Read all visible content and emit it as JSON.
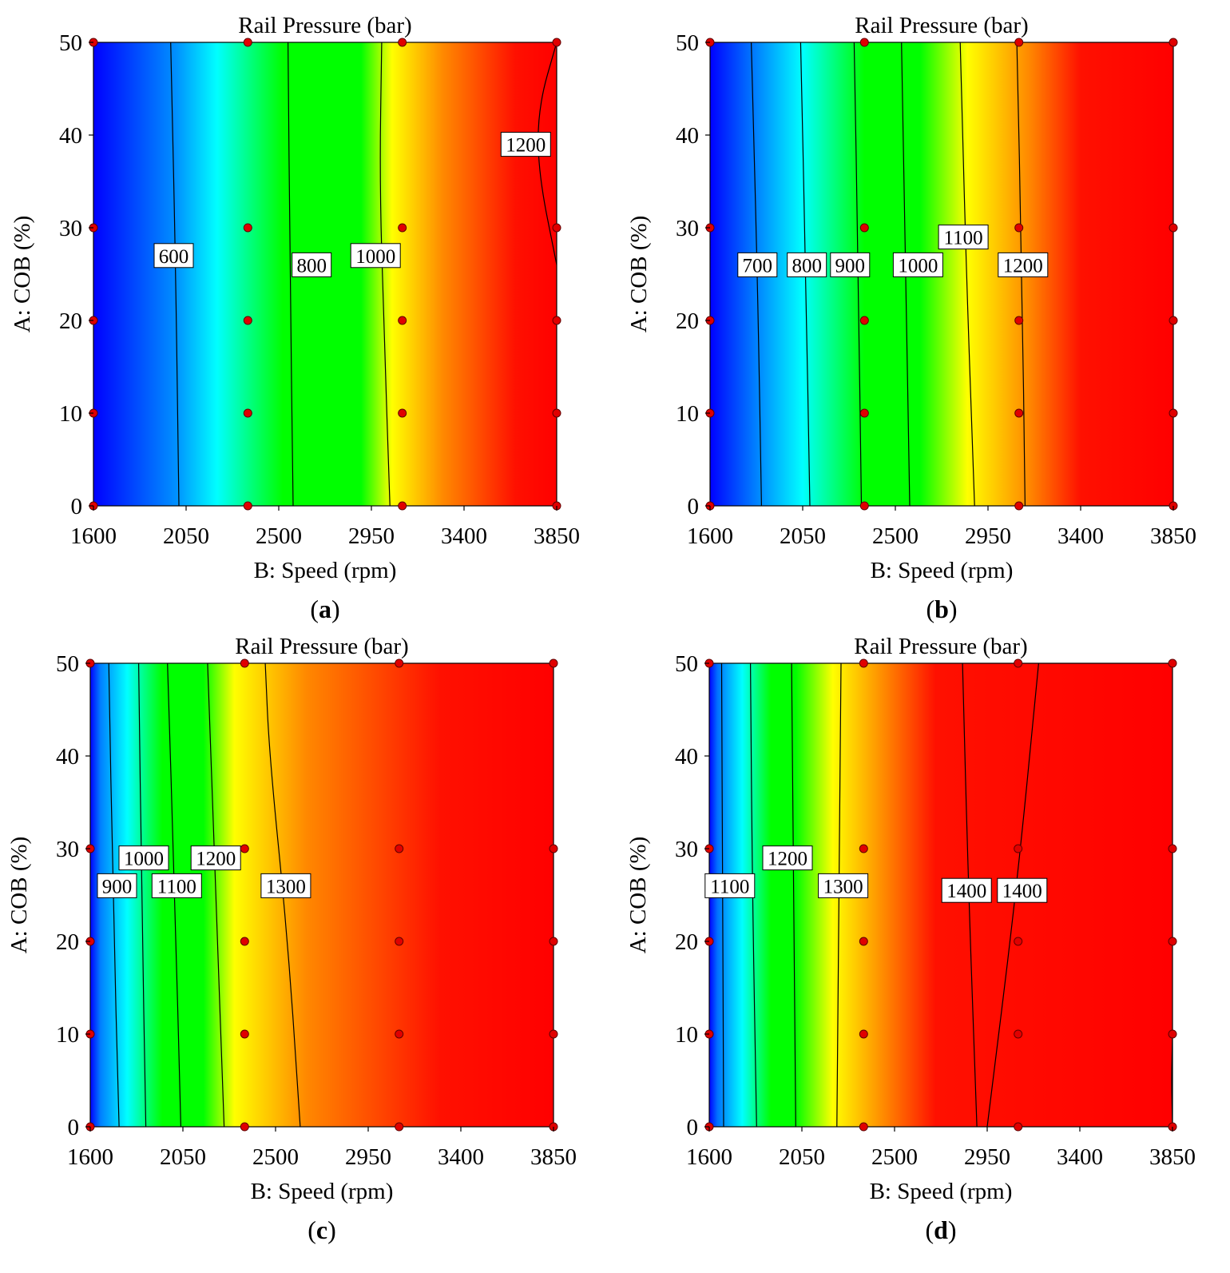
{
  "chart_data": [
    {
      "type": "contour",
      "panel_label": "a",
      "title": "Rail Pressure (bar)",
      "xlabel": "B: Speed  (rpm)",
      "ylabel": "A: COB (%)",
      "xlim": [
        1600,
        3850
      ],
      "ylim": [
        0,
        50
      ],
      "xticks": [
        "1600",
        "2050",
        "2500",
        "2950",
        "3400",
        "3850"
      ],
      "yticks": [
        "0",
        "10",
        "20",
        "30",
        "40",
        "50"
      ],
      "color_stops": [
        {
          "speed": 1600,
          "color": "#0000ff"
        },
        {
          "speed": 2000,
          "color": "#0090ff"
        },
        {
          "speed": 2200,
          "color": "#00ffff"
        },
        {
          "speed": 2520,
          "color": "#00ff00"
        },
        {
          "speed": 2900,
          "color": "#00ff00"
        },
        {
          "speed": 3050,
          "color": "#ffff00"
        },
        {
          "speed": 3300,
          "color": "#ff8800"
        },
        {
          "speed": 3650,
          "color": "#ff1000"
        },
        {
          "speed": 3850,
          "color": "#ff0000"
        }
      ],
      "contours": [
        {
          "level": "600",
          "points": [
            [
              1975,
              50
            ],
            [
              2000,
              25
            ],
            [
              2015,
              0
            ]
          ],
          "label_at": [
            1990,
            27
          ]
        },
        {
          "level": "800",
          "points": [
            [
              2545,
              50
            ],
            [
              2555,
              25
            ],
            [
              2570,
              0
            ]
          ],
          "label_at": [
            2660,
            26
          ]
        },
        {
          "level": "1000",
          "points": [
            [
              3000,
              50
            ],
            [
              2990,
              35
            ],
            [
              3010,
              20
            ],
            [
              3040,
              0
            ]
          ],
          "label_at": [
            2970,
            27
          ]
        },
        {
          "level": "1200",
          "points": [
            [
              3850,
              50
            ],
            [
              3760,
              43
            ],
            [
              3760,
              36
            ],
            [
              3850,
              26
            ]
          ],
          "label_at": [
            3700,
            39
          ]
        }
      ],
      "design_points": [
        [
          1600,
          50
        ],
        [
          1600,
          30
        ],
        [
          1600,
          20
        ],
        [
          1600,
          10
        ],
        [
          1600,
          0
        ],
        [
          2350,
          50
        ],
        [
          2350,
          30
        ],
        [
          2350,
          20
        ],
        [
          2350,
          10
        ],
        [
          2350,
          0
        ],
        [
          3100,
          50
        ],
        [
          3100,
          30
        ],
        [
          3100,
          20
        ],
        [
          3100,
          10
        ],
        [
          3100,
          0
        ],
        [
          3850,
          50
        ],
        [
          3850,
          30
        ],
        [
          3850,
          20
        ],
        [
          3850,
          10
        ],
        [
          3850,
          0
        ]
      ]
    },
    {
      "type": "contour",
      "panel_label": "b",
      "title": "Rail Pressure  (bar)",
      "xlabel": "B: Speed  (rpm)",
      "ylabel": "A: COB (%)",
      "xlim": [
        1600,
        3850
      ],
      "ylim": [
        0,
        50
      ],
      "xticks": [
        "1600",
        "2050",
        "2500",
        "2950",
        "3400",
        "3850"
      ],
      "yticks": [
        "0",
        "10",
        "20",
        "30",
        "40",
        "50"
      ],
      "color_stops": [
        {
          "speed": 1600,
          "color": "#0000ff"
        },
        {
          "speed": 1850,
          "color": "#0090ff"
        },
        {
          "speed": 2050,
          "color": "#00ffff"
        },
        {
          "speed": 2350,
          "color": "#00ff00"
        },
        {
          "speed": 2620,
          "color": "#00ff00"
        },
        {
          "speed": 2850,
          "color": "#ffff00"
        },
        {
          "speed": 3150,
          "color": "#ff8800"
        },
        {
          "speed": 3400,
          "color": "#ff1000"
        },
        {
          "speed": 3850,
          "color": "#ff0000"
        }
      ],
      "contours": [
        {
          "level": "700",
          "points": [
            [
              1800,
              50
            ],
            [
              1830,
              25
            ],
            [
              1850,
              0
            ]
          ],
          "label_at": [
            1830,
            26
          ]
        },
        {
          "level": "800",
          "points": [
            [
              2040,
              50
            ],
            [
              2065,
              25
            ],
            [
              2085,
              0
            ]
          ],
          "label_at": [
            2070,
            26
          ]
        },
        {
          "level": "900",
          "points": [
            [
              2300,
              50
            ],
            [
              2320,
              25
            ],
            [
              2335,
              0
            ]
          ],
          "label_at": [
            2280,
            26
          ]
        },
        {
          "level": "1000",
          "points": [
            [
              2530,
              50
            ],
            [
              2550,
              25
            ],
            [
              2570,
              0
            ]
          ],
          "label_at": [
            2610,
            26
          ]
        },
        {
          "level": "1100",
          "points": [
            [
              2815,
              50
            ],
            [
              2845,
              25
            ],
            [
              2885,
              0
            ]
          ],
          "label_at": [
            2830,
            29
          ]
        },
        {
          "level": "1200",
          "points": [
            [
              3090,
              50
            ],
            [
              3115,
              25
            ],
            [
              3130,
              0
            ]
          ],
          "label_at": [
            3120,
            26
          ]
        }
      ],
      "design_points": [
        [
          1600,
          50
        ],
        [
          1600,
          30
        ],
        [
          1600,
          20
        ],
        [
          1600,
          10
        ],
        [
          1600,
          0
        ],
        [
          2350,
          50
        ],
        [
          2350,
          30
        ],
        [
          2350,
          20
        ],
        [
          2350,
          10
        ],
        [
          2350,
          0
        ],
        [
          3100,
          50
        ],
        [
          3100,
          30
        ],
        [
          3100,
          20
        ],
        [
          3100,
          10
        ],
        [
          3100,
          0
        ],
        [
          3850,
          50
        ],
        [
          3850,
          30
        ],
        [
          3850,
          20
        ],
        [
          3850,
          10
        ],
        [
          3850,
          0
        ]
      ]
    },
    {
      "type": "contour",
      "panel_label": "c",
      "title": "Rail Pressure  (bar)",
      "xlabel": "B: Speed  (rpm)",
      "ylabel": "A: COB (%)",
      "xlim": [
        1600,
        3850
      ],
      "ylim": [
        0,
        50
      ],
      "xticks": [
        "1600",
        "2050",
        "2500",
        "2950",
        "3400",
        "3850"
      ],
      "yticks": [
        "0",
        "10",
        "20",
        "30",
        "40",
        "50"
      ],
      "color_stops": [
        {
          "speed": 1600,
          "color": "#0000ff"
        },
        {
          "speed": 1650,
          "color": "#0080ff"
        },
        {
          "speed": 1780,
          "color": "#00ffff"
        },
        {
          "speed": 1950,
          "color": "#00ff00"
        },
        {
          "speed": 2150,
          "color": "#00ff00"
        },
        {
          "speed": 2300,
          "color": "#ffff00"
        },
        {
          "speed": 2650,
          "color": "#ff8800"
        },
        {
          "speed": 3300,
          "color": "#ff1000"
        },
        {
          "speed": 3850,
          "color": "#ff0000"
        }
      ],
      "contours": [
        {
          "level": "900",
          "points": [
            [
              1690,
              50
            ],
            [
              1710,
              25
            ],
            [
              1740,
              0
            ]
          ],
          "label_at": [
            1730,
            26
          ]
        },
        {
          "level": "1000",
          "points": [
            [
              1835,
              50
            ],
            [
              1850,
              25
            ],
            [
              1870,
              0
            ]
          ],
          "label_at": [
            1860,
            29
          ]
        },
        {
          "level": "1100",
          "points": [
            [
              1975,
              50
            ],
            [
              2010,
              25
            ],
            [
              2040,
              0
            ]
          ],
          "label_at": [
            2020,
            26
          ]
        },
        {
          "level": "1200",
          "points": [
            [
              2170,
              50
            ],
            [
              2210,
              25
            ],
            [
              2250,
              0
            ]
          ],
          "label_at": [
            2210,
            29
          ]
        },
        {
          "level": "1300",
          "points": [
            [
              2450,
              50
            ],
            [
              2470,
              40
            ],
            [
              2560,
              20
            ],
            [
              2620,
              0
            ]
          ],
          "label_at": [
            2550,
            26
          ]
        }
      ],
      "design_points": [
        [
          1600,
          50
        ],
        [
          1600,
          30
        ],
        [
          1600,
          20
        ],
        [
          1600,
          10
        ],
        [
          1600,
          0
        ],
        [
          2350,
          50
        ],
        [
          2350,
          30
        ],
        [
          2350,
          20
        ],
        [
          2350,
          10
        ],
        [
          2350,
          0
        ],
        [
          3100,
          50
        ],
        [
          3100,
          30
        ],
        [
          3100,
          20
        ],
        [
          3100,
          10
        ],
        [
          3100,
          0
        ],
        [
          3850,
          50
        ],
        [
          3850,
          30
        ],
        [
          3850,
          20
        ],
        [
          3850,
          10
        ],
        [
          3850,
          0
        ]
      ]
    },
    {
      "type": "contour",
      "panel_label": "d",
      "title": "Rail Pressure  (bar)",
      "xlabel": "B: Speed  (rpm)",
      "ylabel": "A: COB (%)",
      "xlim": [
        1600,
        3850
      ],
      "ylim": [
        0,
        50
      ],
      "xticks": [
        "1600",
        "2050",
        "2500",
        "2950",
        "3400",
        "3850"
      ],
      "yticks": [
        "0",
        "10",
        "20",
        "30",
        "40",
        "50"
      ],
      "color_stops": [
        {
          "speed": 1600,
          "color": "#0000ff"
        },
        {
          "speed": 1640,
          "color": "#0070ff"
        },
        {
          "speed": 1760,
          "color": "#00ffff"
        },
        {
          "speed": 1900,
          "color": "#00ff00"
        },
        {
          "speed": 2020,
          "color": "#00ff00"
        },
        {
          "speed": 2200,
          "color": "#ffff00"
        },
        {
          "speed": 2450,
          "color": "#ff8800"
        },
        {
          "speed": 2700,
          "color": "#ff1000"
        },
        {
          "speed": 3850,
          "color": "#ff0000"
        }
      ],
      "contours": [
        {
          "level": "1100",
          "points": [
            [
              1660,
              50
            ],
            [
              1665,
              25
            ],
            [
              1670,
              0
            ]
          ],
          "label_at": [
            1700,
            26
          ]
        },
        {
          "level": "1200",
          "points": [
            [
              1800,
              50
            ],
            [
              1810,
              25
            ],
            [
              1830,
              0
            ]
          ],
          "label_at": [
            1980,
            29
          ]
        },
        {
          "level": "1300",
          "points": [
            [
              2000,
              50
            ],
            [
              2010,
              25
            ],
            [
              2020,
              0
            ]
          ],
          "label_at": [
            2250,
            26
          ]
        },
        {
          "level": "1300",
          "points": [
            [
              2240,
              50
            ],
            [
              2230,
              25
            ],
            [
              2220,
              0
            ]
          ],
          "label_at": null
        },
        {
          "level": "1400",
          "points": [
            [
              2830,
              50
            ],
            [
              2860,
              25
            ],
            [
              2900,
              0
            ]
          ],
          "label_at": [
            2850,
            25.5
          ]
        },
        {
          "level": "1400",
          "points": [
            [
              3200,
              50
            ],
            [
              3090,
              25
            ],
            [
              2950,
              0
            ]
          ],
          "label_at": [
            3120,
            25.5
          ]
        },
        {
          "level": "1400",
          "points": [
            [
              3850,
              10
            ],
            [
              3845,
              5
            ],
            [
              3850,
              0
            ]
          ],
          "label_at": null
        }
      ],
      "design_points": [
        [
          1600,
          50
        ],
        [
          1600,
          30
        ],
        [
          1600,
          20
        ],
        [
          1600,
          10
        ],
        [
          1600,
          0
        ],
        [
          2350,
          50
        ],
        [
          2350,
          30
        ],
        [
          2350,
          20
        ],
        [
          2350,
          10
        ],
        [
          2350,
          0
        ],
        [
          3100,
          50
        ],
        [
          3100,
          30
        ],
        [
          3100,
          20
        ],
        [
          3100,
          10
        ],
        [
          3100,
          0
        ],
        [
          3850,
          50
        ],
        [
          3850,
          30
        ],
        [
          3850,
          20
        ],
        [
          3850,
          10
        ],
        [
          3850,
          0
        ]
      ]
    }
  ]
}
